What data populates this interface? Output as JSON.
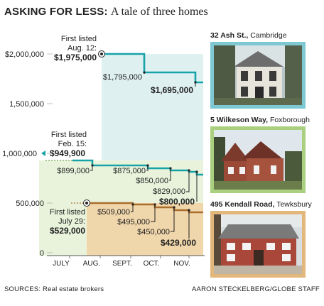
{
  "header": {
    "title_bold": "ASKING FOR LESS:",
    "title_rest": "A tale of three homes"
  },
  "footer": {
    "source": "SOURCES: Real estate brokers",
    "credit": "AARON STECKELBERG/GLOBE STAFF"
  },
  "homes": [
    {
      "street": "32 Ash St.,",
      "town": "Cambridge",
      "frame_color": "#7ec8d3"
    },
    {
      "street": "5 Wilkeson Way,",
      "town": "Foxborough",
      "frame_color": "#a9cf7f"
    },
    {
      "street": "495 Kendall Road,",
      "town": "Tewksbury",
      "frame_color": "#e3b77b"
    }
  ],
  "chart_data": {
    "type": "line",
    "title": "ASKING FOR LESS: A tale of three homes",
    "xlabel": "",
    "ylabel": "",
    "ylim": [
      0,
      2000000
    ],
    "yticks": [
      "$2,000,000",
      "1,500,000",
      "1,000,000",
      "500,000",
      "0"
    ],
    "ytick_values": [
      2000000,
      1500000,
      1000000,
      500000,
      0
    ],
    "xticks": [
      "JULY",
      "AUG.",
      "SEPT.",
      "OCT.",
      "NOV."
    ],
    "series": [
      {
        "name": "32 Ash St., Cambridge",
        "color": "#16a3a8",
        "fill": "#dff0f1",
        "first_listed_label": [
          "First listed",
          "Aug. 12:"
        ],
        "points": [
          {
            "x": "Aug. 12",
            "y": 1975000,
            "label": "$1,975,000"
          },
          {
            "y": 1795000,
            "label": "$1,795,000"
          },
          {
            "y": 1695000,
            "label": "$1,695,000"
          }
        ]
      },
      {
        "name": "5 Wilkeson Way, Foxborough",
        "color": "#16a3a8",
        "fill": "#e9f3dc",
        "first_listed_label": [
          "First listed",
          "Feb. 15:"
        ],
        "points": [
          {
            "x": "Feb. 15",
            "y": 949900,
            "label": "$949,900"
          },
          {
            "y": 899000,
            "label": "$899,000"
          },
          {
            "y": 875000,
            "label": "$875,000"
          },
          {
            "y": 850000,
            "label": "$850,000"
          },
          {
            "y": 829000,
            "label": "$829,000"
          },
          {
            "y": 800000,
            "label": "$800,000"
          }
        ]
      },
      {
        "name": "495 Kendall Road, Tewksbury",
        "color": "#a96e2c",
        "fill": "#f0d6ab",
        "first_listed_label": [
          "First listed",
          "July 29:"
        ],
        "points": [
          {
            "x": "July 29",
            "y": 529000,
            "label": "$529,000"
          },
          {
            "y": 509000,
            "label": "$509,000"
          },
          {
            "y": 495000,
            "label": "$495,000"
          },
          {
            "y": 450000,
            "label": "$450,000"
          },
          {
            "y": 429000,
            "label": "$429,000"
          }
        ]
      }
    ]
  }
}
